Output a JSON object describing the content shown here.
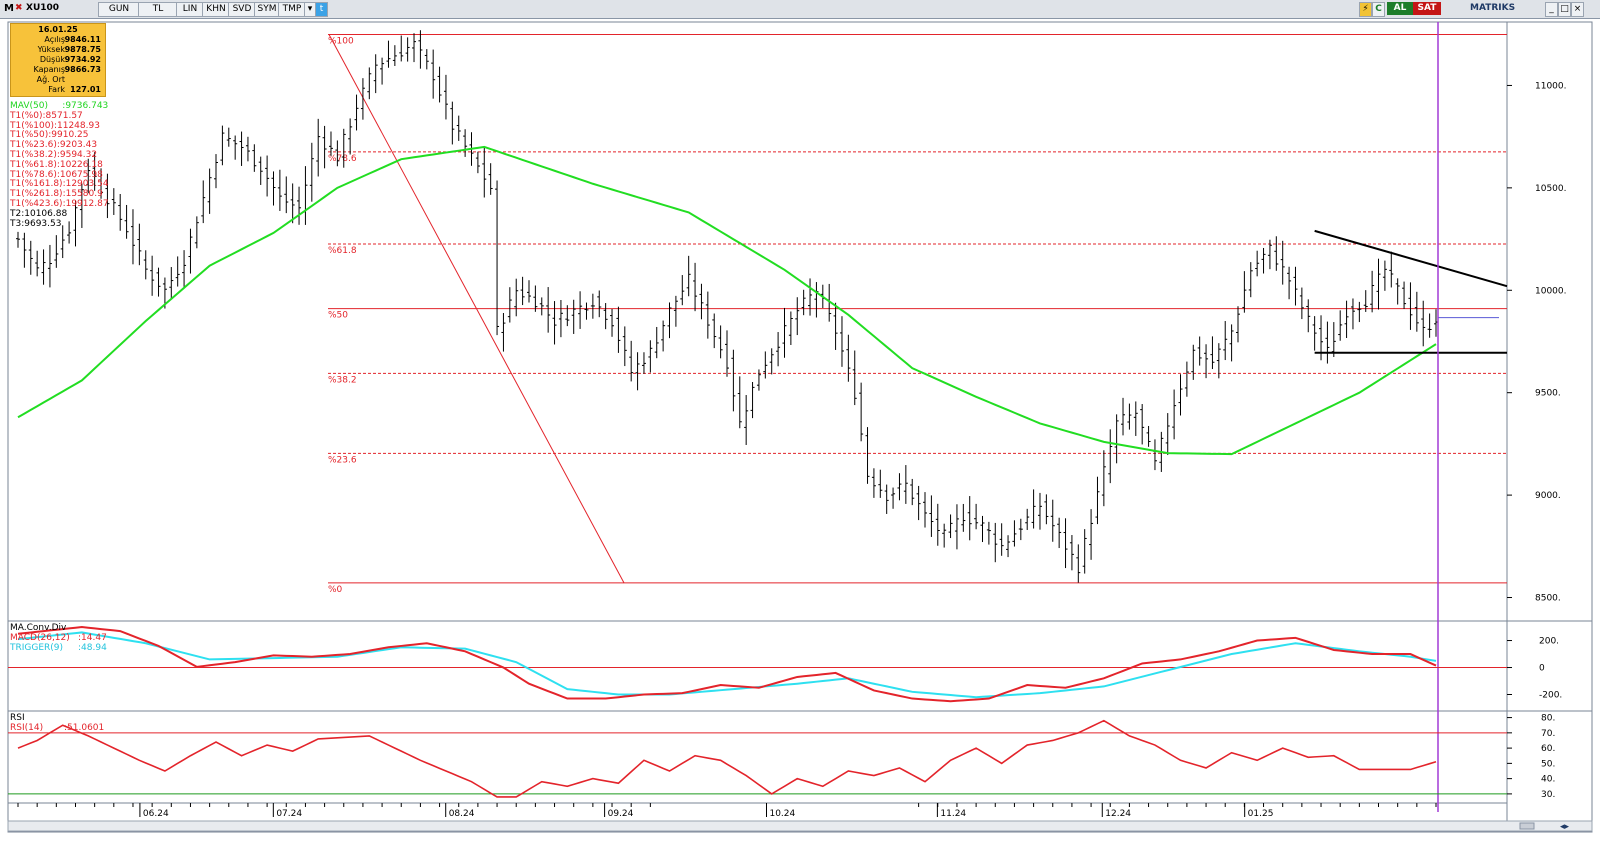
{
  "toolbar": {
    "m_label": "M",
    "symbol": "XU100",
    "buttons": [
      "GUN",
      "TL",
      "LIN",
      "KHN",
      "SVD",
      "SYM",
      "TMP"
    ],
    "al_label": "AL",
    "sat_label": "SAT",
    "brand": "MATRIKS"
  },
  "info": {
    "date": "16.01.25",
    "rows": [
      {
        "k": "Açılış",
        "v": "9846.11"
      },
      {
        "k": "Yüksek",
        "v": "9878.75"
      },
      {
        "k": "Düşük",
        "v": "9734.92"
      },
      {
        "k": "Kapanış",
        "v": "9866.73"
      },
      {
        "k": "Ağ. Ort",
        "v": ""
      },
      {
        "k": "Fark",
        "v": "127.01"
      }
    ]
  },
  "indicators": {
    "mav": {
      "label": "MAV(50)",
      "value": ":9736.743"
    },
    "t1": [
      "T1(%0):8571.57",
      "T1(%100):11248.93",
      "T1(%50):9910.25",
      "T1(%23.6):9203.43",
      "T1(%38.2):9594.32",
      "T1(%61.8):10226.18",
      "T1(%78.6):10675.98",
      "T1(%161.8):12903.54",
      "T1(%261.8):15580.9",
      "T1(%423.6):19912.87"
    ],
    "t2": "T2:10106.88",
    "t3": "T3:9693.53"
  },
  "chart_data": {
    "type": "bar",
    "symbol": "XU100",
    "price_axis": {
      "ticks": [
        8500,
        9000,
        9500,
        10000,
        10500,
        11000
      ],
      "labels": [
        "8500.",
        "9000.",
        "9500.",
        "10000.",
        "10500.",
        "11000."
      ],
      "range": [
        8400,
        11300
      ]
    },
    "x_labels": [
      "06.24",
      "07.24",
      "08.24",
      "09.24",
      "10.24",
      "11.24",
      "12.24",
      "01.25"
    ],
    "x_label_pos": [
      0.088,
      0.177,
      0.292,
      0.398,
      0.506,
      0.62,
      0.73,
      0.825
    ],
    "fib_levels": [
      {
        "label": "%100",
        "value": 11248.93,
        "style": "solid"
      },
      {
        "label": "%78.6",
        "value": 10675.98,
        "style": "dashed"
      },
      {
        "label": "%61.8",
        "value": 10226.18,
        "style": "dashed"
      },
      {
        "label": "%50",
        "value": 9910.25,
        "style": "solid"
      },
      {
        "label": "%38.2",
        "value": 9594.32,
        "style": "dashed"
      },
      {
        "label": "%23.6",
        "value": 9203.43,
        "style": "dashed"
      },
      {
        "label": "%0",
        "value": 8571.57,
        "style": "solid"
      }
    ],
    "close_anchors": [
      [
        0,
        10250
      ],
      [
        3,
        10100
      ],
      [
        5,
        10150
      ],
      [
        8,
        10300
      ],
      [
        11,
        10600
      ],
      [
        14,
        10450
      ],
      [
        17,
        10300
      ],
      [
        20,
        10100
      ],
      [
        23,
        10000
      ],
      [
        26,
        10150
      ],
      [
        29,
        10450
      ],
      [
        32,
        10750
      ],
      [
        35,
        10700
      ],
      [
        38,
        10600
      ],
      [
        41,
        10450
      ],
      [
        44,
        10400
      ],
      [
        47,
        10750
      ],
      [
        50,
        10650
      ],
      [
        53,
        10900
      ],
      [
        56,
        11100
      ],
      [
        59,
        11150
      ],
      [
        62,
        11200
      ],
      [
        65,
        11050
      ],
      [
        68,
        10800
      ],
      [
        71,
        10650
      ],
      [
        74,
        10500
      ],
      [
        75,
        9800
      ],
      [
        78,
        10000
      ],
      [
        81,
        9950
      ],
      [
        84,
        9850
      ],
      [
        87,
        9900
      ],
      [
        90,
        9950
      ],
      [
        93,
        9850
      ],
      [
        96,
        9600
      ],
      [
        99,
        9700
      ],
      [
        102,
        9900
      ],
      [
        105,
        10050
      ],
      [
        108,
        9850
      ],
      [
        111,
        9650
      ],
      [
        113,
        9350
      ],
      [
        116,
        9600
      ],
      [
        119,
        9750
      ],
      [
        122,
        9900
      ],
      [
        125,
        10000
      ],
      [
        128,
        9800
      ],
      [
        131,
        9500
      ],
      [
        133,
        9100
      ],
      [
        136,
        9000
      ],
      [
        139,
        9050
      ],
      [
        142,
        8900
      ],
      [
        145,
        8800
      ],
      [
        148,
        8900
      ],
      [
        151,
        8850
      ],
      [
        154,
        8750
      ],
      [
        157,
        8850
      ],
      [
        160,
        8950
      ],
      [
        163,
        8800
      ],
      [
        166,
        8650
      ],
      [
        169,
        9000
      ],
      [
        172,
        9350
      ],
      [
        175,
        9400
      ],
      [
        178,
        9150
      ],
      [
        181,
        9450
      ],
      [
        184,
        9700
      ],
      [
        187,
        9650
      ],
      [
        190,
        9800
      ],
      [
        193,
        10100
      ],
      [
        196,
        10200
      ],
      [
        199,
        10050
      ],
      [
        202,
        9850
      ],
      [
        205,
        9700
      ],
      [
        208,
        9900
      ],
      [
        211,
        9950
      ],
      [
        214,
        10100
      ],
      [
        217,
        9950
      ],
      [
        220,
        9800
      ],
      [
        222,
        9866
      ]
    ],
    "ma_anchors": [
      [
        0,
        9380
      ],
      [
        10,
        9560
      ],
      [
        20,
        9850
      ],
      [
        30,
        10120
      ],
      [
        40,
        10280
      ],
      [
        50,
        10500
      ],
      [
        60,
        10640
      ],
      [
        73,
        10700
      ],
      [
        90,
        10520
      ],
      [
        105,
        10380
      ],
      [
        120,
        10100
      ],
      [
        130,
        9880
      ],
      [
        140,
        9620
      ],
      [
        150,
        9480
      ],
      [
        160,
        9350
      ],
      [
        170,
        9260
      ],
      [
        180,
        9205
      ],
      [
        190,
        9200
      ],
      [
        200,
        9350
      ],
      [
        210,
        9500
      ],
      [
        222,
        9737
      ]
    ],
    "trendlines": [
      {
        "from": [
          203,
          10290
        ],
        "to": [
          236,
          10020
        ]
      },
      {
        "from": [
          203,
          9695
        ],
        "to": [
          236,
          9695
        ]
      }
    ],
    "macd": {
      "labels": {
        "title": "MA.Conv.Div",
        "macd": "MACD(26,12)",
        "macd_value": ":14.47",
        "trigger": "TRIGGER(9)",
        "trigger_value": ":48.94"
      },
      "ticks": [
        -200,
        0,
        200
      ],
      "tick_labels": [
        "-200.",
        "0",
        "200."
      ],
      "range": [
        -300,
        330
      ],
      "macd_anchors": [
        [
          0,
          250
        ],
        [
          10,
          300
        ],
        [
          16,
          270
        ],
        [
          22,
          160
        ],
        [
          28,
          5
        ],
        [
          34,
          40
        ],
        [
          40,
          90
        ],
        [
          46,
          80
        ],
        [
          52,
          100
        ],
        [
          58,
          150
        ],
        [
          64,
          180
        ],
        [
          70,
          120
        ],
        [
          76,
          0
        ],
        [
          80,
          -120
        ],
        [
          86,
          -230
        ],
        [
          92,
          -230
        ],
        [
          98,
          -200
        ],
        [
          104,
          -190
        ],
        [
          110,
          -130
        ],
        [
          116,
          -150
        ],
        [
          122,
          -70
        ],
        [
          128,
          -40
        ],
        [
          134,
          -170
        ],
        [
          140,
          -230
        ],
        [
          146,
          -250
        ],
        [
          152,
          -230
        ],
        [
          158,
          -130
        ],
        [
          164,
          -150
        ],
        [
          170,
          -80
        ],
        [
          176,
          30
        ],
        [
          182,
          60
        ],
        [
          188,
          120
        ],
        [
          194,
          200
        ],
        [
          200,
          220
        ],
        [
          206,
          130
        ],
        [
          212,
          100
        ],
        [
          218,
          100
        ],
        [
          222,
          14.47
        ]
      ],
      "trigger_anchors": [
        [
          0,
          210
        ],
        [
          10,
          260
        ],
        [
          20,
          180
        ],
        [
          30,
          60
        ],
        [
          40,
          70
        ],
        [
          50,
          80
        ],
        [
          60,
          150
        ],
        [
          70,
          140
        ],
        [
          78,
          40
        ],
        [
          86,
          -160
        ],
        [
          94,
          -200
        ],
        [
          102,
          -200
        ],
        [
          112,
          -160
        ],
        [
          122,
          -120
        ],
        [
          130,
          -80
        ],
        [
          140,
          -180
        ],
        [
          150,
          -220
        ],
        [
          160,
          -190
        ],
        [
          170,
          -140
        ],
        [
          180,
          -20
        ],
        [
          190,
          100
        ],
        [
          200,
          180
        ],
        [
          210,
          120
        ],
        [
          218,
          80
        ],
        [
          222,
          48.94
        ]
      ]
    },
    "rsi": {
      "labels": {
        "title": "RSI",
        "rsi": "RSI(14)",
        "value": ":51.0601"
      },
      "ticks": [
        30,
        40,
        50,
        60,
        70,
        80
      ],
      "tick_labels": [
        "30.",
        "40.",
        "50.",
        "60.",
        "70.",
        "80."
      ],
      "levels": [
        30,
        70
      ],
      "range": [
        26,
        83
      ],
      "anchors": [
        [
          0,
          60
        ],
        [
          3,
          65
        ],
        [
          7,
          75
        ],
        [
          11,
          68
        ],
        [
          15,
          60
        ],
        [
          19,
          52
        ],
        [
          23,
          45
        ],
        [
          27,
          55
        ],
        [
          31,
          64
        ],
        [
          35,
          55
        ],
        [
          39,
          62
        ],
        [
          43,
          58
        ],
        [
          47,
          66
        ],
        [
          51,
          67
        ],
        [
          55,
          68
        ],
        [
          59,
          60
        ],
        [
          63,
          52
        ],
        [
          67,
          45
        ],
        [
          71,
          38
        ],
        [
          75,
          28
        ],
        [
          78,
          28
        ],
        [
          82,
          38
        ],
        [
          86,
          35
        ],
        [
          90,
          40
        ],
        [
          94,
          37
        ],
        [
          98,
          52
        ],
        [
          102,
          45
        ],
        [
          106,
          55
        ],
        [
          110,
          52
        ],
        [
          114,
          42
        ],
        [
          118,
          30
        ],
        [
          122,
          40
        ],
        [
          126,
          35
        ],
        [
          130,
          45
        ],
        [
          134,
          42
        ],
        [
          138,
          47
        ],
        [
          142,
          38
        ],
        [
          146,
          52
        ],
        [
          150,
          60
        ],
        [
          154,
          50
        ],
        [
          158,
          62
        ],
        [
          162,
          65
        ],
        [
          166,
          70
        ],
        [
          170,
          78
        ],
        [
          174,
          68
        ],
        [
          178,
          62
        ],
        [
          182,
          52
        ],
        [
          186,
          47
        ],
        [
          190,
          57
        ],
        [
          194,
          52
        ],
        [
          198,
          60
        ],
        [
          202,
          54
        ],
        [
          206,
          55
        ],
        [
          210,
          46
        ],
        [
          214,
          46
        ],
        [
          218,
          46
        ],
        [
          222,
          51.06
        ]
      ]
    },
    "bar_count": 223
  }
}
